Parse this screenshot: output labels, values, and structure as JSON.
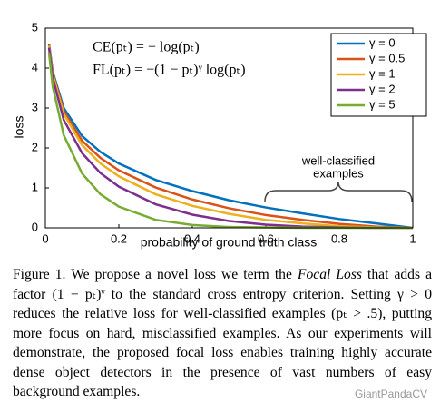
{
  "chart_data": {
    "type": "line",
    "formulas": [
      "CE(pₜ) = − log(pₜ)",
      "FL(pₜ) = −(1 − pₜ)ᵞ log(pₜ)"
    ],
    "xlabel": "probability of ground truth class",
    "ylabel": "loss",
    "annotation": [
      "well-classified",
      "examples"
    ],
    "x": [
      0.01,
      0.02,
      0.05,
      0.1,
      0.15,
      0.2,
      0.3,
      0.4,
      0.5,
      0.6,
      0.7,
      0.8,
      0.9,
      1.0
    ],
    "series": [
      {
        "name": "γ = 0",
        "color": "#0072bd",
        "values": [
          4.61,
          3.91,
          3.0,
          2.3,
          1.9,
          1.61,
          1.2,
          0.92,
          0.69,
          0.51,
          0.36,
          0.22,
          0.11,
          0
        ]
      },
      {
        "name": "γ = 0.5",
        "color": "#d95319",
        "values": [
          4.58,
          3.87,
          2.92,
          2.18,
          1.75,
          1.44,
          1.01,
          0.71,
          0.49,
          0.32,
          0.2,
          0.1,
          0.03,
          0
        ]
      },
      {
        "name": "γ = 1",
        "color": "#edb120",
        "values": [
          4.56,
          3.83,
          2.85,
          2.07,
          1.61,
          1.29,
          0.84,
          0.55,
          0.35,
          0.2,
          0.11,
          0.04,
          0.01,
          0
        ]
      },
      {
        "name": "γ = 2",
        "color": "#7e2f8e",
        "values": [
          4.51,
          3.76,
          2.7,
          1.87,
          1.37,
          1.03,
          0.59,
          0.33,
          0.17,
          0.08,
          0.03,
          0.01,
          0,
          0
        ]
      },
      {
        "name": "γ = 5",
        "color": "#77ac30",
        "values": [
          4.38,
          3.54,
          2.32,
          1.36,
          0.84,
          0.53,
          0.2,
          0.07,
          0.02,
          0.01,
          0,
          0,
          0,
          0
        ]
      }
    ],
    "xlim": [
      0,
      1
    ],
    "ylim": [
      0,
      5
    ],
    "xticks": [
      0,
      0.2,
      0.4,
      0.6,
      0.8,
      1
    ],
    "yticks": [
      0,
      1,
      2,
      3,
      4,
      5
    ],
    "legend": "upper-right"
  },
  "caption": [
    "Figure 1. We propose a novel loss we term the ",
    "Focal Loss",
    " that adds a factor (1 − pₜ)ᵞ to the standard cross entropy criterion. Setting γ > 0 reduces the relative loss for well-classified examples (pₜ > .5), putting more focus on hard, misclassified examples. As our experiments will demonstrate, the proposed focal loss enables training highly accurate dense object detectors in the presence of vast numbers of easy background examples."
  ],
  "watermark": "GiantPandaCV"
}
